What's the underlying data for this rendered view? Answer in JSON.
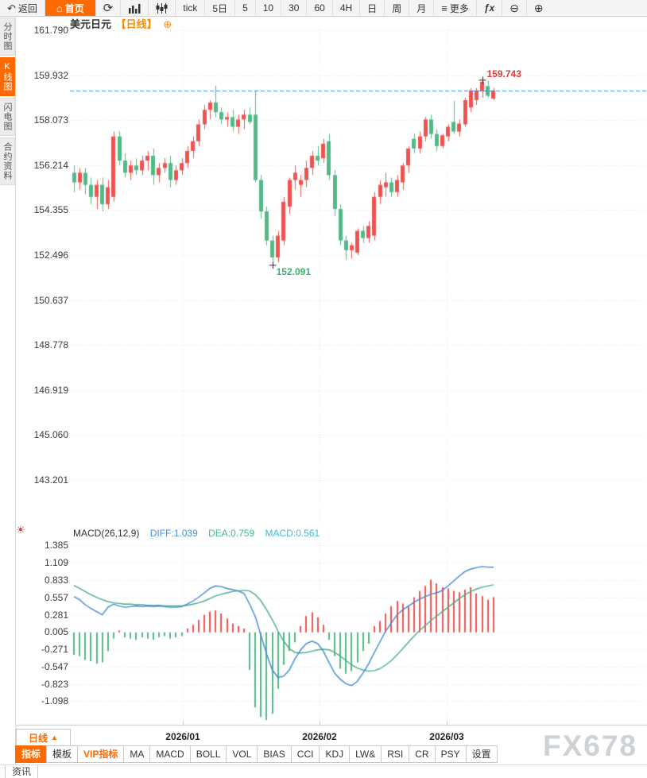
{
  "toolbar": {
    "back_label": "返回",
    "home_label": "首页",
    "intervals": [
      "tick",
      "5日",
      "5",
      "10",
      "30",
      "60",
      "4H",
      "日",
      "周",
      "月"
    ],
    "more_label": "更多",
    "fx_label": "ƒx"
  },
  "icons": {
    "back": "↶",
    "home": "⌂",
    "refresh": "⟳",
    "more": "≡",
    "zoom_out": "⊖",
    "zoom_in": "⊕",
    "target": "⊕",
    "settings_sun": "☀",
    "triangle_up": "▲"
  },
  "sidebar": {
    "tabs": [
      {
        "label": "分时图",
        "active": false
      },
      {
        "label": "K线图",
        "active": true
      },
      {
        "label": "闪电图",
        "active": false
      },
      {
        "label": "合约资料",
        "active": false
      }
    ],
    "news_label": "资讯"
  },
  "header": {
    "symbol": "美元日元",
    "period": "【日线】"
  },
  "colors": {
    "accent": "#ff6a00",
    "up": "#ef5350",
    "down": "#53b987",
    "last_price_line": "#2e8be6",
    "grid": "#e3e7ee",
    "diff_line": "#3e87d6",
    "dea_line": "#46ae85",
    "high_text": "#e53935",
    "low_text": "#3fae6e"
  },
  "chart_data": {
    "type": "candlestick",
    "title": "美元日元【日线】",
    "price_axis": [
      "161.790",
      "159.932",
      "158.073",
      "156.214",
      "154.355",
      "152.496",
      "150.637",
      "148.778",
      "146.919",
      "145.060",
      "143.201"
    ],
    "x_labels": [
      "2026/01",
      "2026/02",
      "2026/03"
    ],
    "annotations": {
      "high": {
        "text": "159.743",
        "price": 159.743,
        "index": 72
      },
      "low": {
        "text": "152.091",
        "price": 152.091,
        "index": 35
      },
      "last_close": 159.3
    },
    "candles": [
      [
        155.9,
        156.2,
        155.1,
        155.5
      ],
      [
        155.5,
        156.1,
        155.2,
        155.9
      ],
      [
        155.9,
        156.1,
        155.0,
        155.4
      ],
      [
        155.4,
        155.7,
        154.6,
        154.9
      ],
      [
        154.9,
        155.6,
        154.4,
        155.4
      ],
      [
        155.4,
        155.7,
        154.3,
        154.6
      ],
      [
        154.6,
        155.6,
        154.4,
        155.3
      ],
      [
        154.9,
        157.6,
        154.7,
        157.4
      ],
      [
        157.4,
        157.6,
        156.2,
        156.4
      ],
      [
        156.4,
        156.7,
        155.7,
        155.9
      ],
      [
        155.9,
        156.4,
        155.6,
        156.2
      ],
      [
        156.2,
        156.5,
        155.8,
        156.0
      ],
      [
        156.0,
        156.6,
        155.8,
        156.4
      ],
      [
        156.4,
        156.8,
        156.0,
        156.6
      ],
      [
        156.6,
        156.9,
        155.4,
        155.8
      ],
      [
        155.8,
        156.3,
        155.5,
        156.1
      ],
      [
        156.1,
        156.5,
        155.9,
        156.3
      ],
      [
        156.3,
        156.6,
        155.3,
        155.6
      ],
      [
        155.6,
        156.2,
        155.4,
        156.0
      ],
      [
        156.0,
        156.5,
        155.8,
        156.3
      ],
      [
        156.3,
        157.0,
        156.1,
        156.8
      ],
      [
        156.8,
        157.4,
        156.5,
        157.2
      ],
      [
        157.2,
        158.1,
        157.0,
        157.9
      ],
      [
        157.9,
        158.7,
        157.7,
        158.5
      ],
      [
        158.5,
        158.9,
        158.1,
        158.8
      ],
      [
        158.8,
        159.5,
        158.2,
        158.4
      ],
      [
        158.4,
        158.6,
        157.9,
        158.1
      ],
      [
        158.1,
        158.4,
        157.8,
        158.2
      ],
      [
        158.2,
        158.5,
        157.6,
        157.8
      ],
      [
        157.8,
        158.3,
        157.5,
        158.1
      ],
      [
        158.1,
        158.5,
        157.7,
        158.3
      ],
      [
        158.3,
        158.6,
        157.9,
        158.0
      ],
      [
        158.3,
        159.3,
        155.5,
        155.6
      ],
      [
        155.6,
        155.8,
        154.0,
        154.3
      ],
      [
        154.3,
        154.5,
        152.9,
        153.1
      ],
      [
        153.1,
        153.3,
        152.09,
        152.4
      ],
      [
        152.4,
        153.5,
        152.2,
        153.3
      ],
      [
        153.1,
        154.9,
        152.9,
        154.7
      ],
      [
        154.5,
        155.7,
        154.2,
        155.6
      ],
      [
        155.6,
        156.2,
        155.2,
        155.9
      ],
      [
        155.4,
        155.8,
        154.9,
        155.6
      ],
      [
        155.6,
        156.4,
        155.3,
        156.1
      ],
      [
        156.1,
        156.8,
        155.8,
        156.6
      ],
      [
        156.6,
        157.0,
        156.2,
        156.4
      ],
      [
        156.5,
        157.3,
        156.3,
        157.1
      ],
      [
        157.2,
        157.5,
        155.6,
        155.8
      ],
      [
        155.8,
        156.0,
        154.1,
        154.4
      ],
      [
        154.4,
        154.6,
        152.9,
        153.1
      ],
      [
        153.1,
        153.3,
        152.3,
        152.7
      ],
      [
        152.7,
        153.0,
        152.35,
        152.9
      ],
      [
        152.6,
        153.6,
        152.5,
        153.5
      ],
      [
        153.5,
        153.7,
        153.0,
        153.2
      ],
      [
        153.2,
        153.9,
        153.0,
        153.7
      ],
      [
        153.3,
        155.1,
        153.1,
        154.9
      ],
      [
        154.9,
        155.6,
        154.6,
        155.4
      ],
      [
        155.3,
        155.9,
        154.9,
        155.5
      ],
      [
        155.5,
        155.7,
        154.9,
        155.1
      ],
      [
        155.1,
        155.8,
        154.9,
        155.6
      ],
      [
        155.5,
        156.3,
        155.2,
        156.2
      ],
      [
        156.2,
        157.0,
        155.9,
        156.9
      ],
      [
        157.3,
        157.5,
        156.7,
        156.9
      ],
      [
        156.9,
        157.6,
        156.7,
        157.4
      ],
      [
        157.4,
        158.2,
        157.2,
        158.1
      ],
      [
        158.1,
        158.3,
        157.3,
        157.5
      ],
      [
        157.5,
        157.7,
        156.8,
        157.0
      ],
      [
        157.0,
        157.5,
        156.9,
        157.45
      ],
      [
        157.4,
        157.9,
        157.2,
        157.8
      ],
      [
        158.0,
        158.87,
        157.5,
        157.6
      ],
      [
        157.6,
        158.1,
        157.4,
        157.93
      ],
      [
        157.9,
        159.0,
        157.8,
        158.9
      ],
      [
        158.6,
        159.4,
        158.4,
        159.3
      ],
      [
        158.9,
        159.4,
        158.7,
        159.3
      ],
      [
        159.26,
        159.743,
        159.0,
        159.66
      ],
      [
        159.48,
        159.7,
        159.0,
        159.08
      ],
      [
        158.96,
        159.4,
        158.9,
        159.3
      ]
    ],
    "macd": {
      "params": "MACD(26,12,9)",
      "diff_label": "DIFF:1.039",
      "dea_label": "DEA:0.759",
      "macd_label": "MACD:0.561",
      "axis": [
        "1.385",
        "1.109",
        "0.833",
        "0.557",
        "0.281",
        "0.005",
        "-0.271",
        "-0.547",
        "-0.823",
        "-1.098"
      ],
      "diff": [
        0.57,
        0.52,
        0.44,
        0.38,
        0.33,
        0.28,
        0.4,
        0.45,
        0.42,
        0.4,
        0.41,
        0.42,
        0.41,
        0.42,
        0.41,
        0.42,
        0.41,
        0.4,
        0.4,
        0.41,
        0.45,
        0.5,
        0.56,
        0.63,
        0.7,
        0.74,
        0.73,
        0.7,
        0.68,
        0.66,
        0.62,
        0.45,
        0.25,
        -0.05,
        -0.35,
        -0.6,
        -0.72,
        -0.7,
        -0.6,
        -0.42,
        -0.28,
        -0.18,
        -0.14,
        -0.18,
        -0.3,
        -0.48,
        -0.65,
        -0.75,
        -0.82,
        -0.85,
        -0.78,
        -0.65,
        -0.5,
        -0.32,
        -0.15,
        0.02,
        0.15,
        0.28,
        0.36,
        0.42,
        0.48,
        0.53,
        0.57,
        0.61,
        0.63,
        0.67,
        0.74,
        0.82,
        0.9,
        0.97,
        1.01,
        1.03,
        1.05,
        1.04,
        1.039
      ],
      "dea": [
        0.75,
        0.7,
        0.65,
        0.6,
        0.56,
        0.52,
        0.49,
        0.47,
        0.46,
        0.45,
        0.45,
        0.44,
        0.44,
        0.43,
        0.43,
        0.43,
        0.42,
        0.42,
        0.42,
        0.42,
        0.43,
        0.45,
        0.47,
        0.5,
        0.54,
        0.58,
        0.61,
        0.63,
        0.65,
        0.66,
        0.67,
        0.66,
        0.6,
        0.5,
        0.36,
        0.2,
        0.02,
        -0.14,
        -0.26,
        -0.32,
        -0.33,
        -0.32,
        -0.3,
        -0.28,
        -0.27,
        -0.28,
        -0.32,
        -0.38,
        -0.45,
        -0.52,
        -0.57,
        -0.6,
        -0.62,
        -0.61,
        -0.58,
        -0.52,
        -0.45,
        -0.36,
        -0.26,
        -0.16,
        -0.06,
        0.03,
        0.11,
        0.19,
        0.26,
        0.33,
        0.4,
        0.47,
        0.54,
        0.6,
        0.65,
        0.69,
        0.72,
        0.74,
        0.759
      ],
      "hist": [
        -0.36,
        -0.38,
        -0.44,
        -0.46,
        -0.5,
        -0.48,
        -0.3,
        -0.1,
        0.03,
        -0.08,
        -0.1,
        -0.12,
        -0.08,
        -0.1,
        -0.12,
        -0.08,
        -0.06,
        -0.1,
        -0.08,
        -0.06,
        0.06,
        0.12,
        0.2,
        0.28,
        0.33,
        0.35,
        0.3,
        0.22,
        0.14,
        0.1,
        0.06,
        -0.6,
        -1.2,
        -1.35,
        -1.4,
        -1.3,
        -0.9,
        -0.52,
        -0.3,
        -0.16,
        0.1,
        0.26,
        0.32,
        0.24,
        0.12,
        -0.12,
        -0.38,
        -0.58,
        -0.66,
        -0.62,
        -0.48,
        -0.3,
        -0.18,
        0.1,
        0.18,
        0.3,
        0.42,
        0.5,
        0.46,
        0.42,
        0.56,
        0.66,
        0.74,
        0.84,
        0.78,
        0.72,
        0.7,
        0.66,
        0.64,
        0.68,
        0.72,
        0.62,
        0.58,
        0.52,
        0.561
      ]
    }
  },
  "bottom": {
    "period_button": "日线",
    "indicator_tabs": [
      {
        "label": "指标",
        "style": "active"
      },
      {
        "label": "模板",
        "style": ""
      },
      {
        "label": "VIP指标",
        "style": "vip"
      },
      {
        "label": "MA",
        "style": ""
      },
      {
        "label": "MACD",
        "style": ""
      },
      {
        "label": "BOLL",
        "style": ""
      },
      {
        "label": "VOL",
        "style": ""
      },
      {
        "label": "BIAS",
        "style": ""
      },
      {
        "label": "CCI",
        "style": ""
      },
      {
        "label": "KDJ",
        "style": ""
      },
      {
        "label": "LW&",
        "style": ""
      },
      {
        "label": "RSI",
        "style": ""
      },
      {
        "label": "CR",
        "style": ""
      },
      {
        "label": "PSY",
        "style": ""
      },
      {
        "label": "设置",
        "style": ""
      }
    ]
  },
  "watermark": "FX678"
}
